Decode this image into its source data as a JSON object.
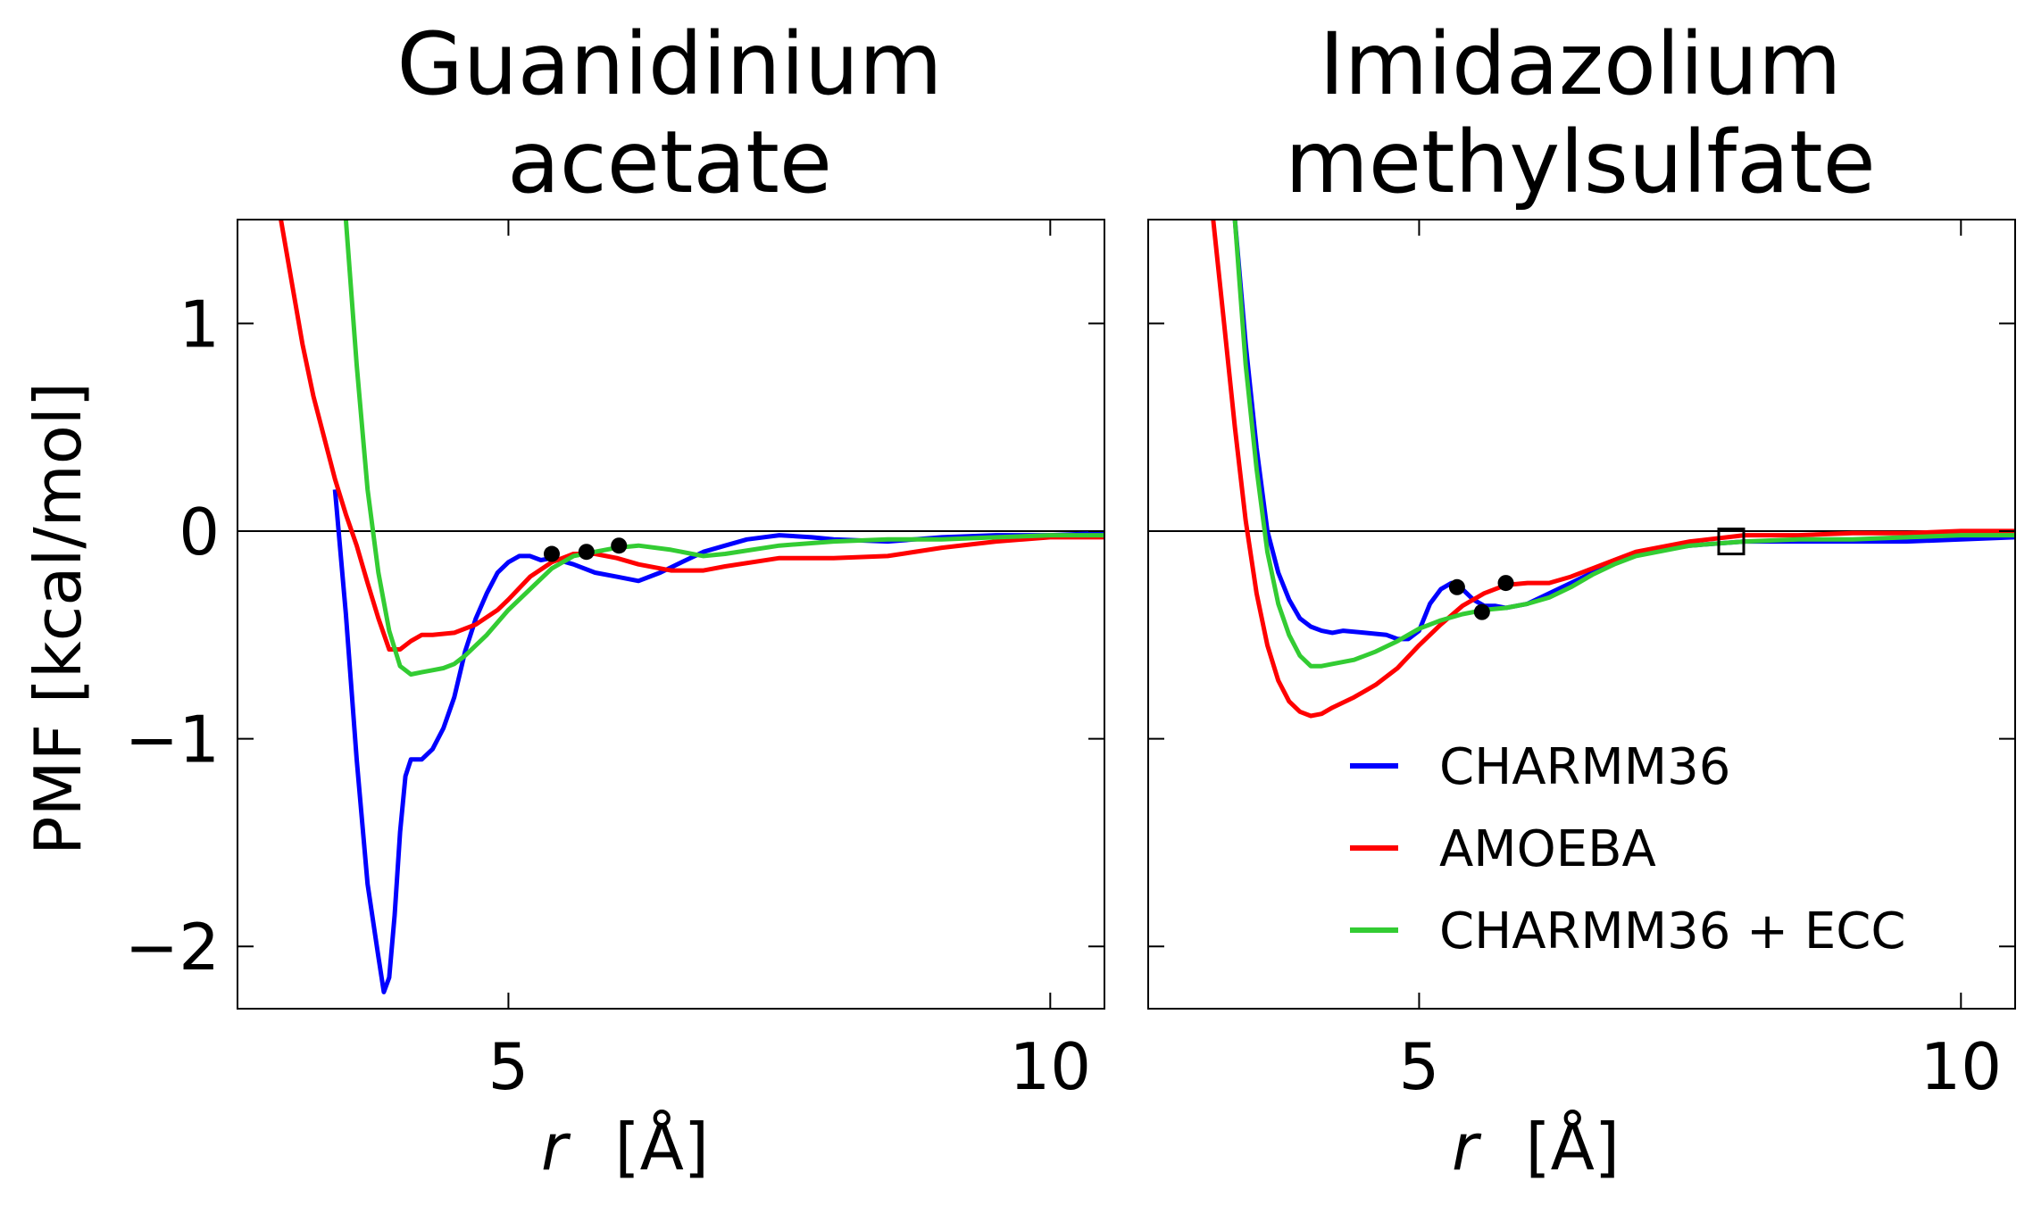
{
  "figure": {
    "ylabel": "PMF [kcal/mol]",
    "xlabel_var": "r",
    "xlabel_unit": "[Å]"
  },
  "chart_data": [
    {
      "type": "line",
      "title_line1": "Guanidinium",
      "title_line2": "acetate",
      "xlim": [
        2.5,
        10.5
      ],
      "ylim": [
        -2.3,
        1.5
      ],
      "xticks": [
        5,
        10
      ],
      "yticks": [
        -2,
        -1,
        0,
        1
      ],
      "xtick_labels": [
        "5",
        "10"
      ],
      "ytick_labels": [
        "−2",
        "−1",
        "0",
        "1"
      ],
      "zero_line": true,
      "series": [
        {
          "name": "CHARMM36",
          "color": "#0000ff",
          "x": [
            3.4,
            3.5,
            3.6,
            3.7,
            3.8,
            3.85,
            3.9,
            3.95,
            4.0,
            4.05,
            4.1,
            4.2,
            4.3,
            4.4,
            4.5,
            4.6,
            4.7,
            4.8,
            4.9,
            5.0,
            5.1,
            5.2,
            5.3,
            5.4,
            5.6,
            5.8,
            6.0,
            6.2,
            6.4,
            6.6,
            6.8,
            7.0,
            7.2,
            7.5,
            7.8,
            8.0,
            8.5,
            9.0,
            9.5,
            10.0,
            10.5
          ],
          "y": [
            0.2,
            -0.4,
            -1.1,
            -1.7,
            -2.05,
            -2.22,
            -2.15,
            -1.85,
            -1.45,
            -1.18,
            -1.1,
            -1.1,
            -1.05,
            -0.95,
            -0.8,
            -0.58,
            -0.42,
            -0.3,
            -0.2,
            -0.15,
            -0.12,
            -0.12,
            -0.14,
            -0.13,
            -0.16,
            -0.2,
            -0.22,
            -0.24,
            -0.2,
            -0.15,
            -0.1,
            -0.07,
            -0.04,
            -0.02,
            -0.03,
            -0.04,
            -0.05,
            -0.03,
            -0.02,
            -0.02,
            -0.01
          ]
        },
        {
          "name": "AMOEBA",
          "color": "#ff0000",
          "x": [
            2.9,
            3.0,
            3.1,
            3.2,
            3.3,
            3.4,
            3.5,
            3.6,
            3.7,
            3.8,
            3.9,
            4.0,
            4.1,
            4.2,
            4.3,
            4.5,
            4.7,
            4.9,
            5.0,
            5.2,
            5.4,
            5.6,
            5.8,
            6.0,
            6.2,
            6.5,
            6.8,
            7.0,
            7.5,
            8.0,
            8.5,
            9.0,
            9.5,
            10.0,
            10.5
          ],
          "y": [
            1.5,
            1.2,
            0.9,
            0.65,
            0.45,
            0.25,
            0.08,
            -0.07,
            -0.25,
            -0.42,
            -0.57,
            -0.57,
            -0.53,
            -0.5,
            -0.5,
            -0.49,
            -0.45,
            -0.38,
            -0.33,
            -0.22,
            -0.15,
            -0.11,
            -0.11,
            -0.13,
            -0.16,
            -0.19,
            -0.19,
            -0.17,
            -0.13,
            -0.13,
            -0.12,
            -0.08,
            -0.05,
            -0.03,
            -0.03
          ]
        },
        {
          "name": "CHARMM36 + ECC",
          "color": "#33cc33",
          "x": [
            3.5,
            3.6,
            3.7,
            3.8,
            3.9,
            4.0,
            4.1,
            4.2,
            4.3,
            4.4,
            4.5,
            4.6,
            4.7,
            4.8,
            4.9,
            5.0,
            5.2,
            5.4,
            5.6,
            5.8,
            6.0,
            6.2,
            6.5,
            6.8,
            7.0,
            7.5,
            8.0,
            8.5,
            9.0,
            9.5,
            10.0,
            10.5
          ],
          "y": [
            1.5,
            0.8,
            0.2,
            -0.2,
            -0.48,
            -0.65,
            -0.69,
            -0.68,
            -0.67,
            -0.66,
            -0.64,
            -0.6,
            -0.55,
            -0.5,
            -0.44,
            -0.38,
            -0.28,
            -0.18,
            -0.12,
            -0.1,
            -0.08,
            -0.07,
            -0.09,
            -0.12,
            -0.11,
            -0.07,
            -0.05,
            -0.04,
            -0.04,
            -0.03,
            -0.02,
            -0.02
          ]
        }
      ],
      "markers": [
        {
          "x": 5.4,
          "y": -0.11,
          "shape": "circle"
        },
        {
          "x": 5.72,
          "y": -0.1,
          "shape": "circle"
        },
        {
          "x": 6.02,
          "y": -0.07,
          "shape": "circle"
        }
      ]
    },
    {
      "type": "line",
      "title_line1": "Imidazolium",
      "title_line2": "methylsulfate",
      "xlim": [
        2.5,
        10.5
      ],
      "ylim": [
        -2.3,
        1.5
      ],
      "xticks": [
        5,
        10
      ],
      "yticks": [
        -2,
        -1,
        0,
        1
      ],
      "xtick_labels": [
        "5",
        "10"
      ],
      "zero_line": true,
      "series": [
        {
          "name": "CHARMM36",
          "color": "#0000ff",
          "x": [
            3.3,
            3.4,
            3.5,
            3.6,
            3.7,
            3.8,
            3.9,
            4.0,
            4.1,
            4.2,
            4.3,
            4.5,
            4.7,
            4.8,
            4.9,
            5.0,
            5.1,
            5.2,
            5.3,
            5.4,
            5.5,
            5.6,
            5.7,
            5.8,
            6.0,
            6.2,
            6.4,
            6.6,
            6.8,
            7.0,
            7.5,
            8.0,
            8.5,
            9.0,
            9.5,
            10.0,
            10.5
          ],
          "y": [
            1.5,
            0.9,
            0.4,
            0.0,
            -0.2,
            -0.33,
            -0.42,
            -0.46,
            -0.48,
            -0.49,
            -0.48,
            -0.49,
            -0.5,
            -0.52,
            -0.52,
            -0.48,
            -0.35,
            -0.28,
            -0.25,
            -0.28,
            -0.33,
            -0.36,
            -0.36,
            -0.37,
            -0.35,
            -0.3,
            -0.25,
            -0.2,
            -0.15,
            -0.11,
            -0.07,
            -0.05,
            -0.05,
            -0.05,
            -0.05,
            -0.04,
            -0.03
          ]
        },
        {
          "name": "AMOEBA",
          "color": "#ff0000",
          "x": [
            3.1,
            3.2,
            3.3,
            3.4,
            3.5,
            3.6,
            3.7,
            3.8,
            3.9,
            4.0,
            4.1,
            4.2,
            4.4,
            4.6,
            4.8,
            5.0,
            5.2,
            5.4,
            5.6,
            5.8,
            6.0,
            6.2,
            6.4,
            6.6,
            6.8,
            7.0,
            7.5,
            8.0,
            8.5,
            9.0,
            9.5,
            10.0,
            10.5
          ],
          "y": [
            1.5,
            1.0,
            0.5,
            0.05,
            -0.3,
            -0.55,
            -0.72,
            -0.82,
            -0.87,
            -0.89,
            -0.88,
            -0.85,
            -0.8,
            -0.74,
            -0.66,
            -0.55,
            -0.45,
            -0.36,
            -0.3,
            -0.26,
            -0.25,
            -0.25,
            -0.22,
            -0.18,
            -0.14,
            -0.1,
            -0.05,
            -0.02,
            -0.02,
            -0.01,
            -0.01,
            0.0,
            0.0
          ]
        },
        {
          "name": "CHARMM36 + ECC",
          "color": "#33cc33",
          "x": [
            3.3,
            3.4,
            3.5,
            3.6,
            3.7,
            3.8,
            3.9,
            4.0,
            4.1,
            4.2,
            4.4,
            4.6,
            4.8,
            5.0,
            5.2,
            5.4,
            5.6,
            5.8,
            6.0,
            6.2,
            6.4,
            6.6,
            6.8,
            7.0,
            7.5,
            8.0,
            8.5,
            9.0,
            9.5,
            10.0,
            10.5
          ],
          "y": [
            1.5,
            0.8,
            0.3,
            -0.1,
            -0.35,
            -0.5,
            -0.6,
            -0.65,
            -0.65,
            -0.64,
            -0.62,
            -0.58,
            -0.53,
            -0.47,
            -0.43,
            -0.4,
            -0.38,
            -0.37,
            -0.35,
            -0.32,
            -0.27,
            -0.21,
            -0.16,
            -0.12,
            -0.07,
            -0.05,
            -0.04,
            -0.04,
            -0.03,
            -0.02,
            -0.02
          ]
        }
      ],
      "markers": [
        {
          "x": 5.35,
          "y": -0.27,
          "shape": "circle"
        },
        {
          "x": 5.58,
          "y": -0.39,
          "shape": "circle"
        },
        {
          "x": 5.8,
          "y": -0.25,
          "shape": "circle"
        },
        {
          "x": 7.88,
          "y": -0.05,
          "shape": "square"
        }
      ],
      "legend": {
        "placement": "lower-right",
        "entries": [
          {
            "label": "CHARMM36",
            "color": "#0000ff"
          },
          {
            "label": "AMOEBA",
            "color": "#ff0000"
          },
          {
            "label": "CHARMM36 + ECC",
            "color": "#33cc33"
          }
        ]
      }
    }
  ]
}
